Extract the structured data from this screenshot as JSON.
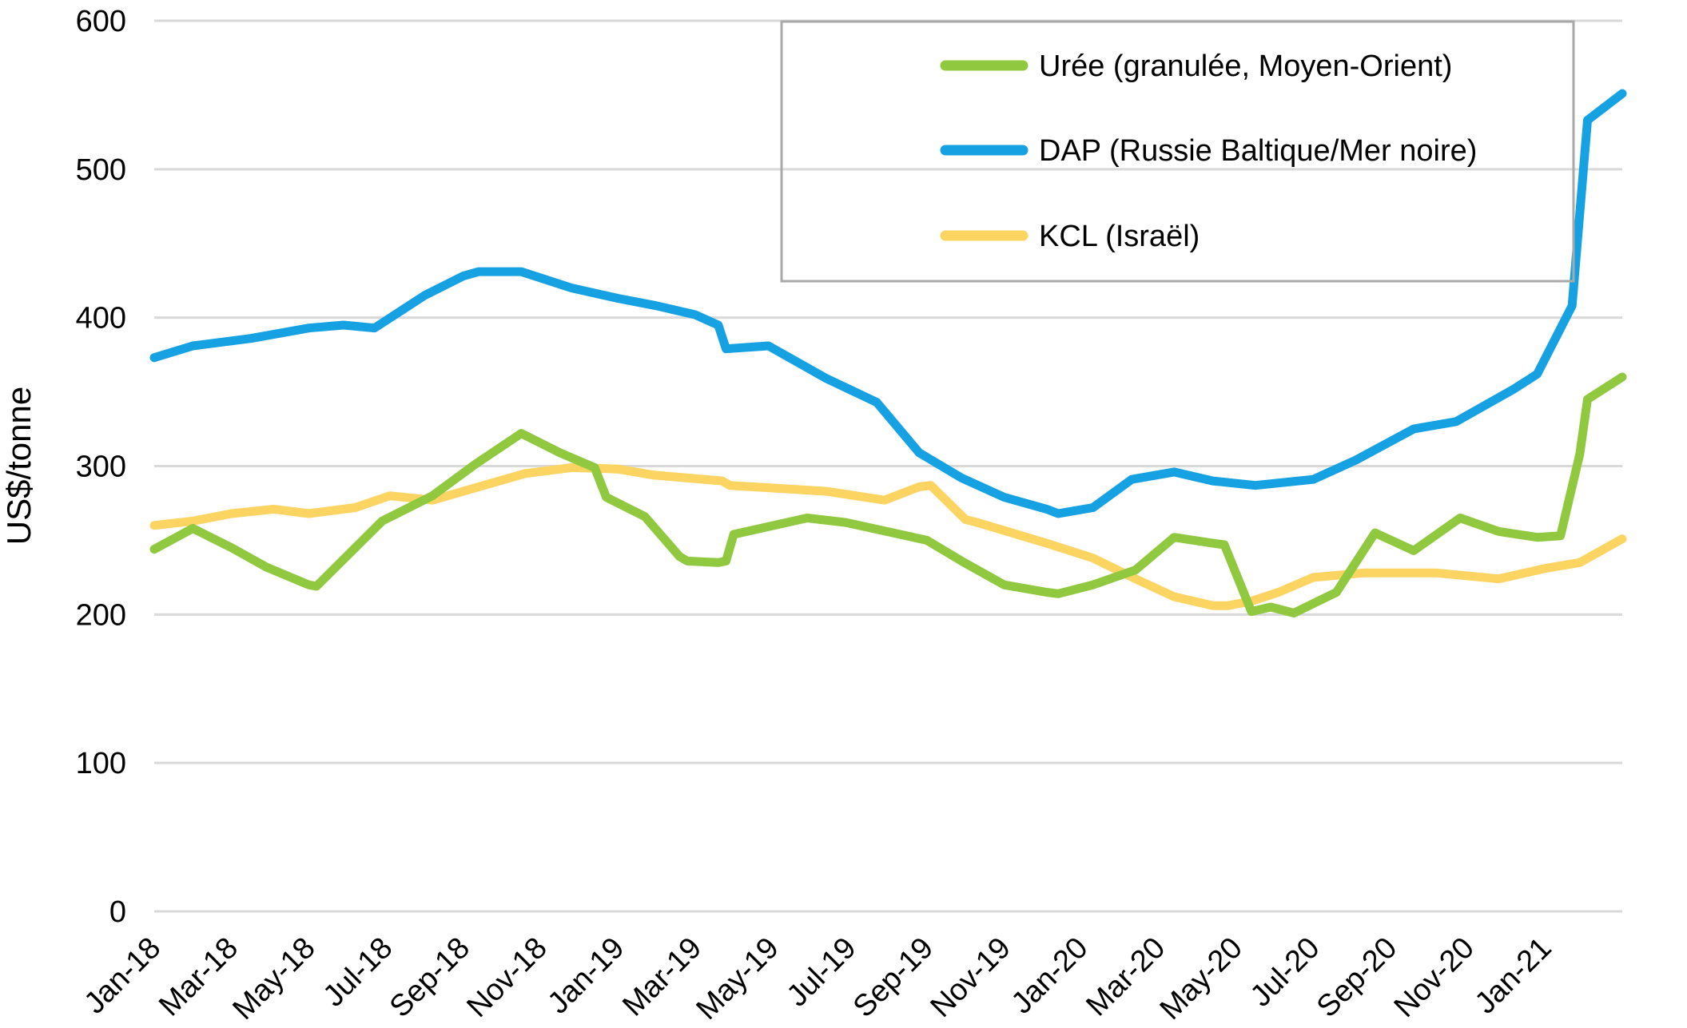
{
  "chart_data": {
    "type": "line",
    "title": "",
    "ylabel": "US$/tonne",
    "xlabel": "",
    "ylim": [
      0,
      600
    ],
    "yticks": [
      0,
      100,
      200,
      300,
      400,
      500,
      600
    ],
    "xlim_months": [
      0,
      38
    ],
    "x_unit": "months since Jan-2018",
    "grid": "horizontal",
    "gridline_color": "#D9D9D9",
    "legend_position": "top-right",
    "legend_border_color": "#A9A9A9",
    "xticks": [
      {
        "month": 0,
        "label": "Jan-18"
      },
      {
        "month": 2,
        "label": "Mar-18"
      },
      {
        "month": 4,
        "label": "May-18"
      },
      {
        "month": 6,
        "label": "Jul-18"
      },
      {
        "month": 8,
        "label": "Sep-18"
      },
      {
        "month": 10,
        "label": "Nov-18"
      },
      {
        "month": 12,
        "label": "Jan-19"
      },
      {
        "month": 14,
        "label": "Mar-19"
      },
      {
        "month": 16,
        "label": "May-19"
      },
      {
        "month": 18,
        "label": "Jul-19"
      },
      {
        "month": 20,
        "label": "Sep-19"
      },
      {
        "month": 22,
        "label": "Nov-19"
      },
      {
        "month": 24,
        "label": "Jan-20"
      },
      {
        "month": 26,
        "label": "Mar-20"
      },
      {
        "month": 28,
        "label": "May-20"
      },
      {
        "month": 30,
        "label": "Jul-20"
      },
      {
        "month": 32,
        "label": "Sep-20"
      },
      {
        "month": 34,
        "label": "Nov-20"
      },
      {
        "month": 36,
        "label": "Jan-21"
      }
    ],
    "series": [
      {
        "name": "Urée (granulée, Moyen-Orient)",
        "color": "#90C93F",
        "points": [
          [
            0,
            244
          ],
          [
            1,
            258
          ],
          [
            2,
            245
          ],
          [
            2.9,
            232
          ],
          [
            4,
            220
          ],
          [
            4.2,
            219
          ],
          [
            5.9,
            263
          ],
          [
            7.2,
            280
          ],
          [
            8.3,
            301
          ],
          [
            9.5,
            322
          ],
          [
            10.5,
            309
          ],
          [
            11.4,
            299
          ],
          [
            11.7,
            279
          ],
          [
            12.7,
            266
          ],
          [
            13.6,
            239
          ],
          [
            13.8,
            236
          ],
          [
            14.6,
            235
          ],
          [
            14.8,
            236
          ],
          [
            15,
            254
          ],
          [
            16.9,
            265
          ],
          [
            17.9,
            262
          ],
          [
            20,
            250
          ],
          [
            20.9,
            236
          ],
          [
            22,
            220
          ],
          [
            23.1,
            215
          ],
          [
            23.4,
            214
          ],
          [
            24.3,
            220
          ],
          [
            25.4,
            230
          ],
          [
            26.4,
            252
          ],
          [
            27.4,
            248
          ],
          [
            27.7,
            247
          ],
          [
            28.4,
            202
          ],
          [
            28.9,
            205
          ],
          [
            29.5,
            201
          ],
          [
            30.6,
            215
          ],
          [
            31.6,
            255
          ],
          [
            32.6,
            243
          ],
          [
            33.8,
            265
          ],
          [
            34.8,
            256
          ],
          [
            35.8,
            252
          ],
          [
            36.4,
            253
          ],
          [
            36.9,
            308
          ],
          [
            37.1,
            345
          ],
          [
            38,
            360
          ]
        ]
      },
      {
        "name": "DAP (Russie Baltique/Mer noire)",
        "color": "#16A1E3",
        "points": [
          [
            0,
            373
          ],
          [
            1,
            381
          ],
          [
            2.5,
            386
          ],
          [
            4,
            393
          ],
          [
            4.9,
            395
          ],
          [
            5.7,
            393
          ],
          [
            7,
            415
          ],
          [
            8,
            428
          ],
          [
            8.4,
            431
          ],
          [
            9.5,
            431
          ],
          [
            10.8,
            420
          ],
          [
            12,
            413
          ],
          [
            13,
            408
          ],
          [
            14,
            402
          ],
          [
            14.6,
            395
          ],
          [
            14.8,
            379
          ],
          [
            15.9,
            381
          ],
          [
            17.4,
            359
          ],
          [
            18.7,
            343
          ],
          [
            19.8,
            309
          ],
          [
            20.9,
            292
          ],
          [
            22,
            279
          ],
          [
            23.1,
            271
          ],
          [
            23.4,
            268
          ],
          [
            24.3,
            272
          ],
          [
            25.3,
            291
          ],
          [
            26.4,
            296
          ],
          [
            27.4,
            290
          ],
          [
            28.5,
            287
          ],
          [
            30,
            291
          ],
          [
            31.1,
            304
          ],
          [
            32.6,
            325
          ],
          [
            33.7,
            330
          ],
          [
            35.2,
            352
          ],
          [
            35.8,
            362
          ],
          [
            36.7,
            408
          ],
          [
            37.1,
            533
          ],
          [
            38,
            551
          ]
        ]
      },
      {
        "name": "KCL (Israël)",
        "color": "#FCD462",
        "points": [
          [
            0,
            260
          ],
          [
            1,
            263
          ],
          [
            2,
            268
          ],
          [
            3.1,
            271
          ],
          [
            4,
            268
          ],
          [
            5.2,
            272
          ],
          [
            6.1,
            280
          ],
          [
            7.2,
            277
          ],
          [
            8.4,
            286
          ],
          [
            9.6,
            295
          ],
          [
            10.8,
            299
          ],
          [
            12,
            298
          ],
          [
            12.9,
            294
          ],
          [
            14.7,
            290
          ],
          [
            14.9,
            287
          ],
          [
            17.4,
            283
          ],
          [
            18.9,
            277
          ],
          [
            19.8,
            286
          ],
          [
            20.1,
            287
          ],
          [
            21,
            264
          ],
          [
            21.3,
            262
          ],
          [
            23.1,
            248
          ],
          [
            24.3,
            238
          ],
          [
            25.4,
            224
          ],
          [
            26.4,
            212
          ],
          [
            27.4,
            206
          ],
          [
            27.8,
            206
          ],
          [
            28.4,
            209
          ],
          [
            29.1,
            215
          ],
          [
            30,
            225
          ],
          [
            31.3,
            228
          ],
          [
            33.2,
            228
          ],
          [
            34.8,
            224
          ],
          [
            36,
            231
          ],
          [
            36.9,
            235
          ],
          [
            38,
            251
          ]
        ]
      }
    ]
  }
}
